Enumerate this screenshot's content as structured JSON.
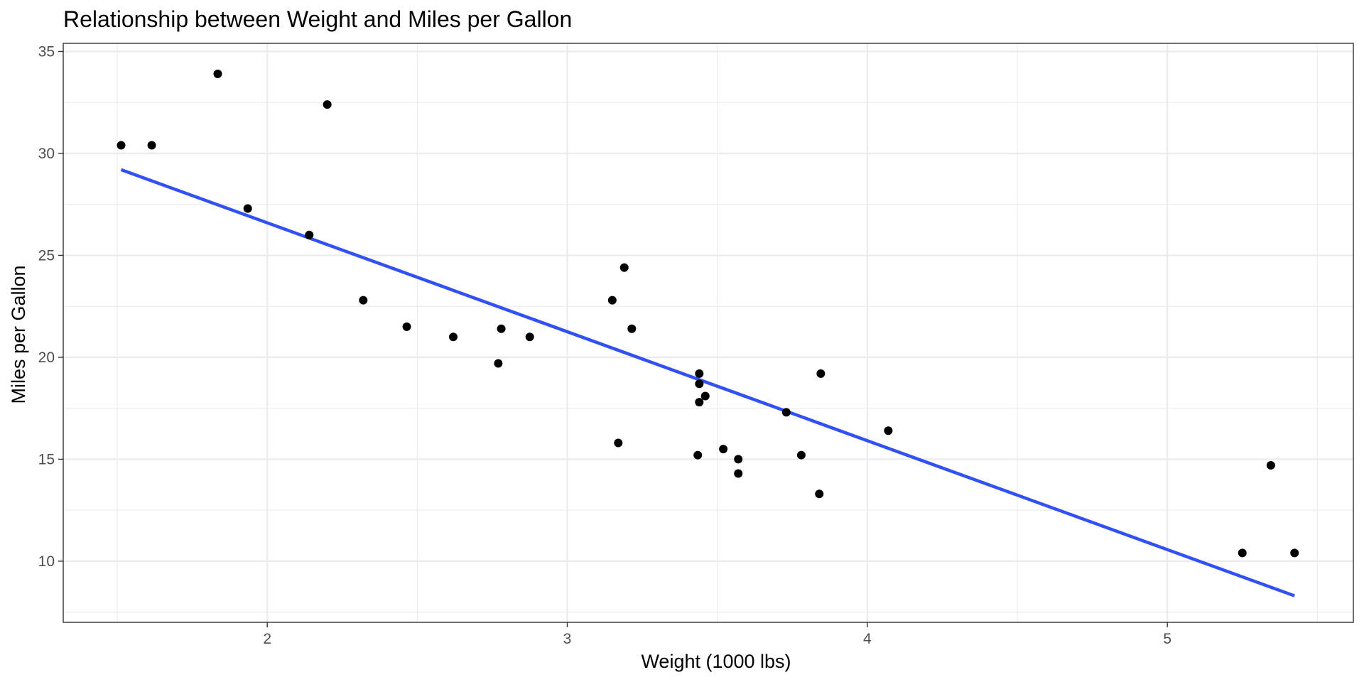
{
  "chart_data": {
    "type": "scatter",
    "title": "Relationship between Weight and Miles per Gallon",
    "xlabel": "Weight (1000 lbs)",
    "ylabel": "Miles per Gallon",
    "xlim": [
      1.32,
      5.62
    ],
    "ylim": [
      7.0,
      35.4
    ],
    "x_ticks": [
      2,
      3,
      4,
      5
    ],
    "y_ticks": [
      10,
      15,
      20,
      25,
      30,
      35
    ],
    "x_minor_ticks": [
      1.5,
      2.5,
      3.5,
      4.5,
      5.5
    ],
    "y_minor_ticks": [
      7.5,
      12.5,
      17.5,
      22.5,
      27.5,
      32.5
    ],
    "grid": true,
    "legend": "none",
    "point_color": "#000000",
    "line_color": "#3251f5",
    "points": [
      {
        "x": 1.513,
        "y": 30.4
      },
      {
        "x": 1.615,
        "y": 30.4
      },
      {
        "x": 1.835,
        "y": 33.9
      },
      {
        "x": 1.935,
        "y": 27.3
      },
      {
        "x": 2.14,
        "y": 26.0
      },
      {
        "x": 2.2,
        "y": 32.4
      },
      {
        "x": 2.32,
        "y": 22.8
      },
      {
        "x": 2.465,
        "y": 21.5
      },
      {
        "x": 2.62,
        "y": 21.0
      },
      {
        "x": 2.77,
        "y": 19.7
      },
      {
        "x": 2.78,
        "y": 21.4
      },
      {
        "x": 2.875,
        "y": 21.0
      },
      {
        "x": 3.15,
        "y": 22.8
      },
      {
        "x": 3.17,
        "y": 15.8
      },
      {
        "x": 3.19,
        "y": 24.4
      },
      {
        "x": 3.215,
        "y": 21.4
      },
      {
        "x": 3.435,
        "y": 15.2
      },
      {
        "x": 3.44,
        "y": 18.7
      },
      {
        "x": 3.44,
        "y": 17.8
      },
      {
        "x": 3.44,
        "y": 19.2
      },
      {
        "x": 3.46,
        "y": 18.1
      },
      {
        "x": 3.52,
        "y": 15.5
      },
      {
        "x": 3.57,
        "y": 15.0
      },
      {
        "x": 3.57,
        "y": 14.3
      },
      {
        "x": 3.73,
        "y": 17.3
      },
      {
        "x": 3.78,
        "y": 15.2
      },
      {
        "x": 3.84,
        "y": 13.3
      },
      {
        "x": 3.845,
        "y": 19.2
      },
      {
        "x": 4.07,
        "y": 16.4
      },
      {
        "x": 5.25,
        "y": 10.4
      },
      {
        "x": 5.345,
        "y": 14.7
      },
      {
        "x": 5.424,
        "y": 10.4
      }
    ],
    "fit_line": [
      {
        "x": 1.513,
        "y": 29.2
      },
      {
        "x": 5.424,
        "y": 8.3
      }
    ]
  }
}
